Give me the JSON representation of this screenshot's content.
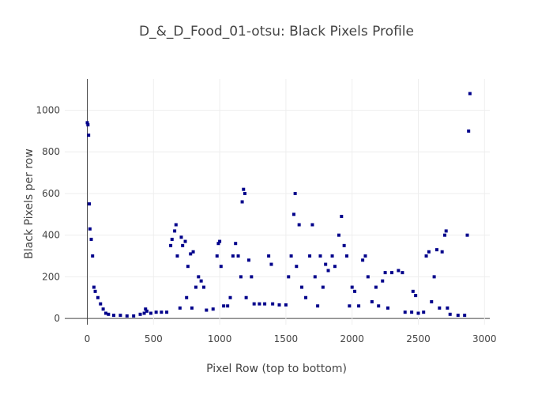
{
  "chart_data": {
    "type": "scatter",
    "title": "D_&_D_Food_01-otsu: Black Pixels Profile",
    "x_label": "Pixel Row (top to bottom)",
    "y_label": "Black Pixels per row",
    "series": [
      {
        "name": "Black Pixels",
        "color": "#00008b",
        "x": [
          0,
          5,
          10,
          15,
          20,
          30,
          40,
          50,
          60,
          80,
          100,
          120,
          140,
          160,
          200,
          250,
          300,
          350,
          400,
          430,
          440,
          450,
          480,
          520,
          560,
          600,
          630,
          640,
          660,
          670,
          680,
          700,
          710,
          720,
          740,
          750,
          760,
          780,
          790,
          800,
          820,
          840,
          860,
          880,
          900,
          950,
          980,
          990,
          1000,
          1010,
          1030,
          1060,
          1080,
          1100,
          1120,
          1140,
          1160,
          1170,
          1180,
          1190,
          1200,
          1220,
          1240,
          1260,
          1300,
          1340,
          1370,
          1390,
          1400,
          1450,
          1500,
          1520,
          1540,
          1560,
          1570,
          1580,
          1600,
          1620,
          1650,
          1680,
          1700,
          1720,
          1740,
          1760,
          1780,
          1800,
          1820,
          1850,
          1870,
          1900,
          1920,
          1940,
          1960,
          1980,
          2000,
          2020,
          2050,
          2080,
          2100,
          2120,
          2150,
          2180,
          2200,
          2230,
          2250,
          2270,
          2300,
          2350,
          2380,
          2400,
          2450,
          2460,
          2480,
          2500,
          2540,
          2560,
          2580,
          2600,
          2620,
          2640,
          2660,
          2680,
          2700,
          2710,
          2720,
          2740,
          2800,
          2850,
          2870,
          2880,
          2890
        ],
        "values": [
          940,
          930,
          880,
          550,
          430,
          380,
          300,
          150,
          130,
          100,
          70,
          45,
          25,
          20,
          15,
          15,
          12,
          12,
          20,
          25,
          45,
          35,
          25,
          30,
          30,
          30,
          350,
          380,
          420,
          450,
          300,
          50,
          390,
          350,
          370,
          100,
          250,
          310,
          50,
          320,
          150,
          200,
          180,
          150,
          40,
          45,
          300,
          360,
          370,
          250,
          60,
          60,
          100,
          300,
          360,
          300,
          200,
          560,
          620,
          600,
          100,
          280,
          200,
          70,
          70,
          70,
          300,
          260,
          70,
          65,
          65,
          200,
          300,
          500,
          600,
          250,
          450,
          150,
          100,
          300,
          450,
          200,
          60,
          300,
          150,
          260,
          230,
          300,
          250,
          400,
          490,
          350,
          300,
          60,
          150,
          130,
          60,
          280,
          300,
          200,
          80,
          150,
          60,
          180,
          220,
          50,
          220,
          230,
          220,
          30,
          30,
          130,
          110,
          25,
          30,
          300,
          320,
          80,
          200,
          330,
          50,
          320,
          400,
          420,
          50,
          20,
          15,
          15,
          400,
          900,
          1080
        ]
      }
    ],
    "xlim": [
      -170,
      3040
    ],
    "ylim": [
      -30,
      1150
    ],
    "xticks": [
      0,
      500,
      1000,
      1500,
      2000,
      2500,
      3000
    ],
    "yticks": [
      0,
      200,
      400,
      600,
      800,
      1000
    ],
    "grid": true
  }
}
